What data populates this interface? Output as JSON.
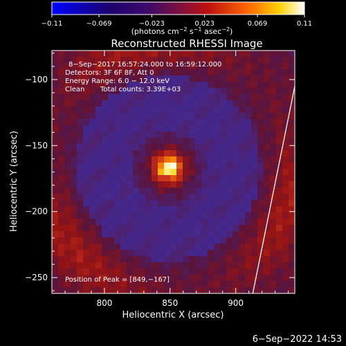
{
  "chart_data": {
    "type": "heatmap",
    "title": "Reconstructed RHESSI Image",
    "xlabel": "Heliocentric X (arcsec)",
    "ylabel": "Heliocentric Y (arcsec)",
    "xlim": [
      760,
      945
    ],
    "ylim": [
      -262,
      -78
    ],
    "x_ticks": [
      800,
      850,
      900
    ],
    "y_ticks": [
      -100,
      -150,
      -200,
      -250
    ],
    "colorbar": {
      "ticks": [
        -0.11,
        -0.069,
        -0.023,
        0.023,
        0.069,
        0.11
      ],
      "tick_labels": [
        "−0.11",
        "−0.069",
        "−0.023",
        "0.023",
        "0.069",
        "0.11"
      ],
      "label_prefix": "(photons cm",
      "label_mid1": " s",
      "label_mid2": " asec",
      "label_suffix": ")",
      "exp_a": "−2",
      "exp_b": "−1",
      "exp_c": "−2"
    },
    "peak": {
      "x": 849,
      "y": -167
    },
    "annotations": {
      "time": "8−Sep−2017 16:57:24.000 to 16:59:12.000",
      "detectors": "Detectors: 3F 6F 8F, Att 0",
      "energy": "Energy Range: 6.0 − 12.0 keV",
      "method": "Clean",
      "counts": "Total counts: 3.39E+03",
      "peak_text": "Position of Peak = [849,−167]"
    },
    "limb_line": [
      [
        913,
        -262
      ],
      [
        945,
        -105
      ]
    ],
    "colors": {
      "background": "#000000",
      "limb": "#ffffff"
    }
  },
  "footer": {
    "date": "6−Sep−2022 14:53"
  }
}
